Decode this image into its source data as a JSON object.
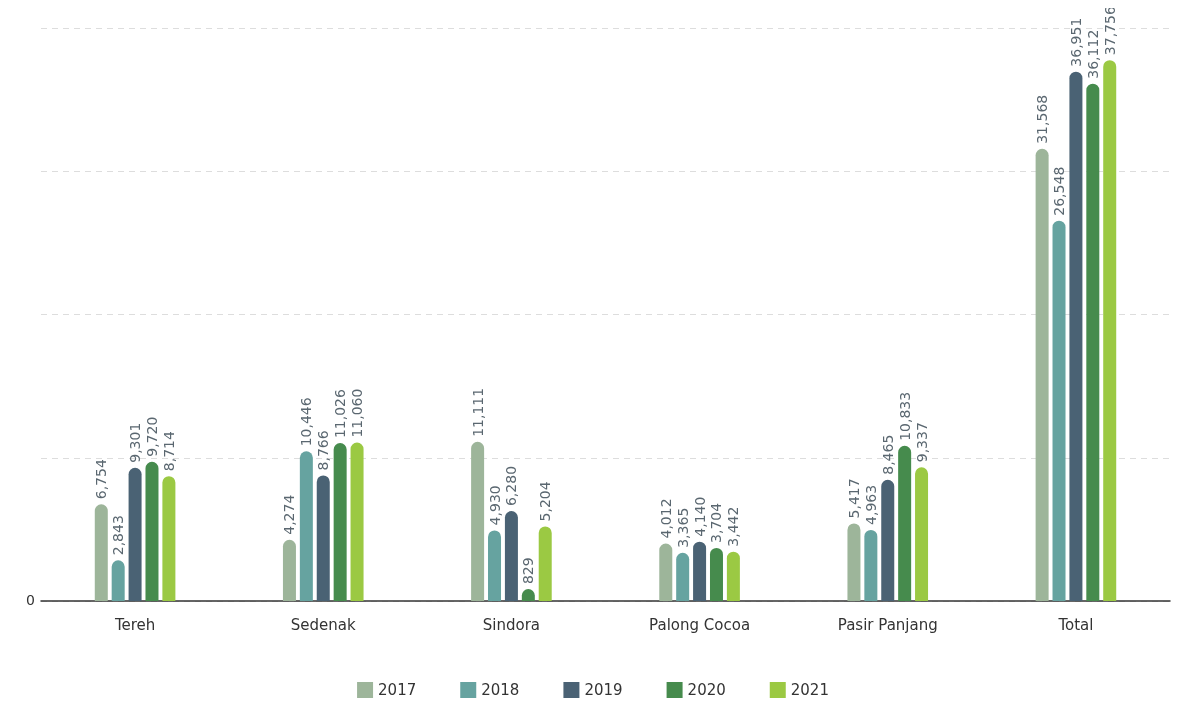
{
  "chart_data": {
    "type": "bar",
    "categories": [
      "Tereh",
      "Sedenak",
      "Sindora",
      "Palong Cocoa",
      "Pasir Panjang",
      "Total"
    ],
    "series": [
      {
        "name": "2017",
        "color": "#9db59a",
        "values": [
          6754,
          4274,
          11111,
          4012,
          5417,
          31568
        ],
        "value_labels": [
          "6,754",
          "4,274",
          "11,111",
          "4,012",
          "5,417",
          "31,568"
        ]
      },
      {
        "name": "2018",
        "color": "#66a3a0",
        "values": [
          2843,
          10446,
          4930,
          3365,
          4963,
          26548
        ],
        "value_labels": [
          "2,843",
          "10,446",
          "4,930",
          "3,365",
          "4,963",
          "26,548"
        ]
      },
      {
        "name": "2019",
        "color": "#4a6274",
        "values": [
          9301,
          8766,
          6280,
          4140,
          8465,
          36951
        ],
        "value_labels": [
          "9,301",
          "8,766",
          "6,280",
          "4,140",
          "8,465",
          "36,951"
        ]
      },
      {
        "name": "2020",
        "color": "#468b4d",
        "values": [
          9720,
          11026,
          829,
          3704,
          10833,
          36112
        ],
        "value_labels": [
          "9,720",
          "11,026",
          "829",
          "3,704",
          "10,833",
          "36,112"
        ]
      },
      {
        "name": "2021",
        "color": "#9bc943",
        "values": [
          8714,
          11060,
          5204,
          3442,
          9337,
          37756
        ],
        "value_labels": [
          "8,714",
          "11,060",
          "5,204",
          "3,442",
          "9,337",
          "37,756"
        ]
      }
    ],
    "annotations": [
      "0"
    ],
    "tick_labels": "x",
    "grid": "y",
    "legend": "bottom"
  }
}
